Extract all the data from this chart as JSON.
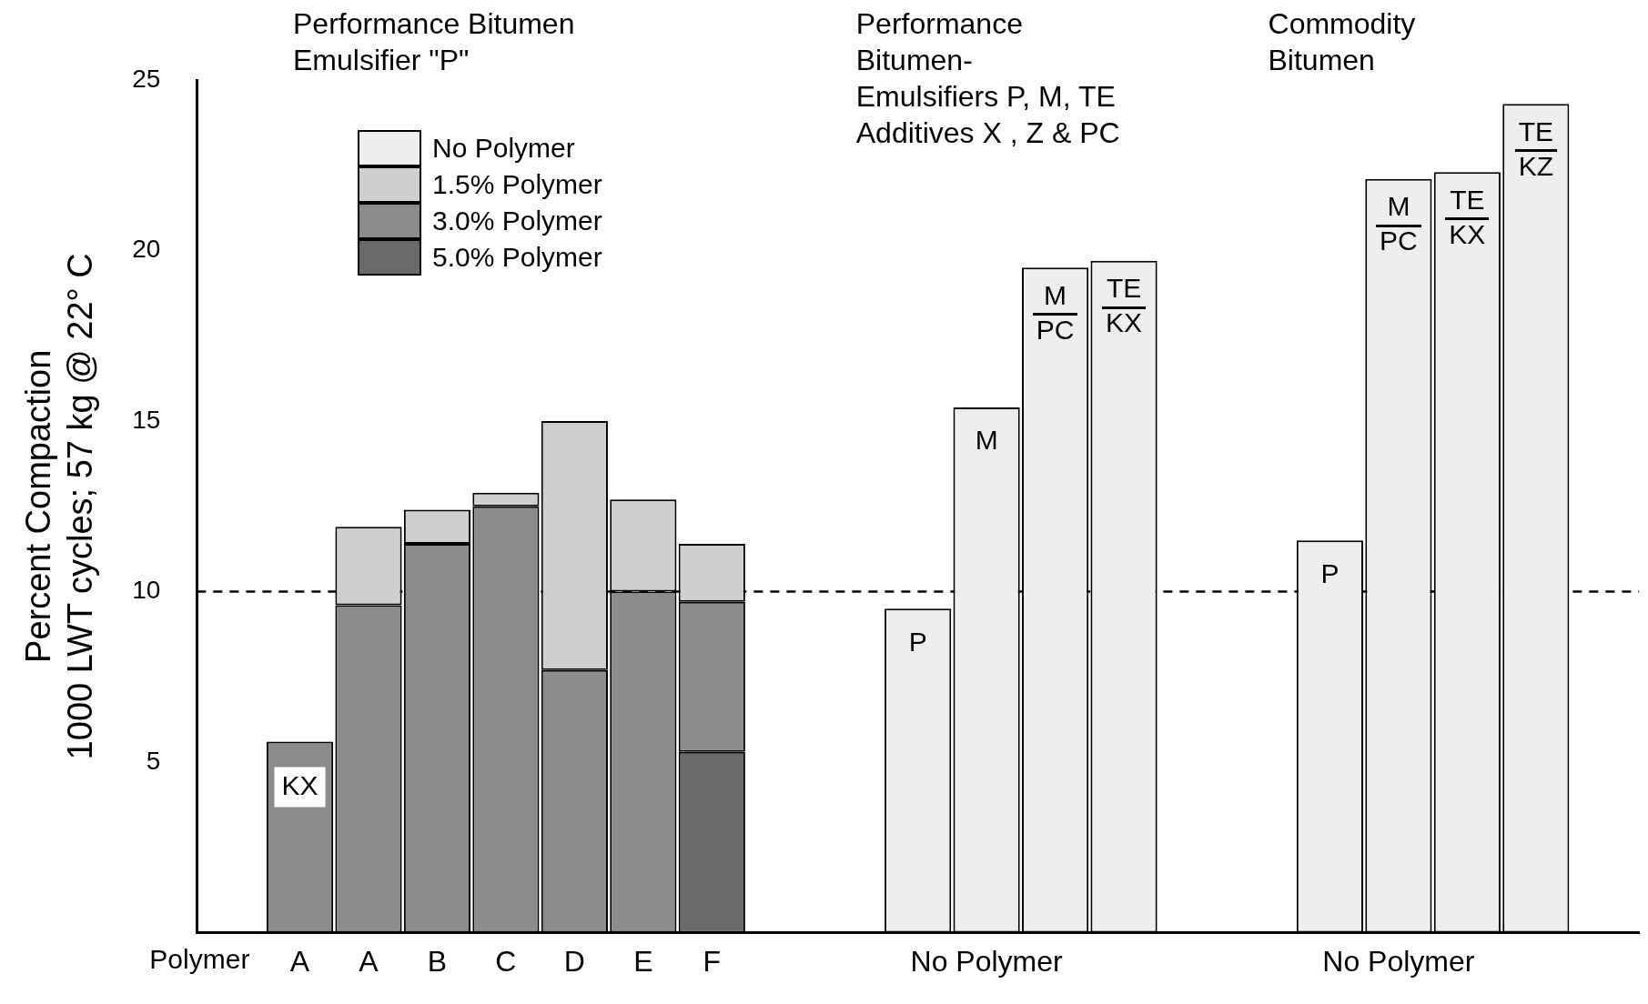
{
  "chart_data": {
    "type": "bar",
    "stacked": true,
    "ylabel": "Percent Compaction\n1000 LWT cycles; 57 kg @ 22° C",
    "xlabel": "Polymer",
    "annotations": [
      "Performance Bitumen\nEmulsifier \"P\"",
      "Performance\nBitumen-\nEmulsifiers P, M, TE\nAdditives X , Z & PC",
      "Commodity\nBitumen"
    ],
    "categories": [
      null,
      "A",
      "A",
      "B",
      "C",
      "D",
      "E",
      "F",
      null,
      null,
      null,
      "No Polymer",
      null,
      null,
      null,
      null,
      null,
      "No Polymer",
      null,
      null,
      null
    ],
    "series": [
      {
        "name": "5.0% Polymer",
        "color": "#6a6a6a",
        "values": [
          null,
          null,
          null,
          null,
          null,
          null,
          null,
          5.3,
          null,
          null,
          null,
          null,
          null,
          null,
          null,
          null,
          null,
          null,
          null,
          null,
          null
        ]
      },
      {
        "name": "3.0% Polymer",
        "color": "#8c8c8c",
        "values": [
          null,
          5.6,
          9.6,
          11.4,
          12.5,
          7.7,
          10.0,
          4.4,
          null,
          null,
          null,
          null,
          null,
          null,
          null,
          null,
          null,
          null,
          null,
          null,
          null
        ],
        "value_labels": [
          null,
          "KX",
          null,
          null,
          null,
          null,
          null,
          null,
          null,
          null,
          null,
          null,
          null,
          null,
          null,
          null,
          null,
          null,
          null,
          null,
          null
        ]
      },
      {
        "name": "1.5% Polymer",
        "color": "#cfcfcf",
        "values": [
          null,
          null,
          2.3,
          1.0,
          0.4,
          7.3,
          2.7,
          1.7,
          null,
          null,
          null,
          null,
          null,
          null,
          null,
          null,
          null,
          null,
          null,
          null,
          null
        ]
      },
      {
        "name": "No Polymer",
        "color": "#eeeeee",
        "values": [
          null,
          null,
          null,
          null,
          null,
          null,
          null,
          null,
          null,
          null,
          9.5,
          15.4,
          19.5,
          19.7,
          null,
          null,
          11.5,
          22.1,
          22.3,
          24.3,
          null
        ],
        "value_labels": [
          null,
          null,
          null,
          null,
          null,
          null,
          null,
          null,
          null,
          null,
          "P",
          "M",
          "M\nPC",
          "TE\nKX",
          null,
          null,
          "P",
          "M\nPC",
          "TE\nKX",
          "TE\nKZ",
          null
        ]
      }
    ],
    "ylim": [
      0,
      25
    ],
    "yticks": [
      5,
      10,
      15,
      20,
      25
    ],
    "ref_lines": [
      {
        "axis": "y",
        "value": 10,
        "line_style": "dashed",
        "color": "#000000"
      }
    ],
    "legend": "top left",
    "grid": false
  }
}
